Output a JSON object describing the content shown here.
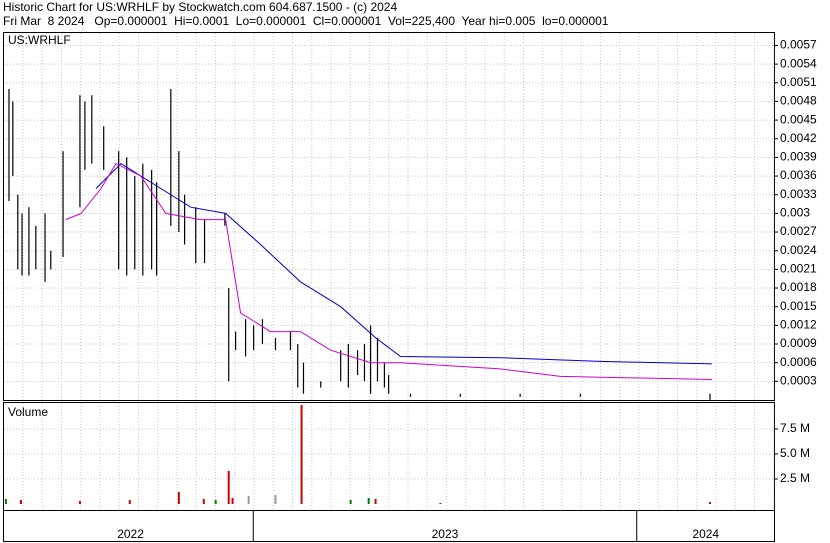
{
  "chart_data": {
    "type": "stock",
    "title": "Historic Chart for US:WRHLF by Stockwatch.com 604.687.1500 - (c) 2024",
    "subtitle": "Fri Mar  8 2024   Op=0.000001  Hi=0.0001  Lo=0.000001  Cl=0.000001  Vol=225,400  Year hi=0.005  lo=0.000001",
    "symbol_label": "US:WRHLF",
    "volume_label": "Volume",
    "xlim": [
      2022.35,
      2024.358
    ],
    "year_starts": [
      2023,
      2024
    ],
    "xticks": [
      {
        "value": 2022.68,
        "label": "2022"
      },
      {
        "value": 2023.5,
        "label": "2023"
      },
      {
        "value": 2024.18,
        "label": "2024"
      }
    ],
    "ylim": [
      0,
      0.0059
    ],
    "yticks": [
      0.0003,
      0.0006,
      0.0009,
      0.0012,
      0.0015,
      0.0018,
      0.0021,
      0.0024,
      0.0027,
      0.003,
      0.0033,
      0.0036,
      0.0039,
      0.0042,
      0.0045,
      0.0048,
      0.0051,
      0.0054,
      0.0057
    ],
    "price_bars": {
      "color": "#000000",
      "x": [
        2022.363,
        2022.373,
        2022.386,
        2022.397,
        2022.415,
        2022.433,
        2022.457,
        2022.472,
        2022.504,
        2022.548,
        2022.561,
        2022.579,
        2022.61,
        2022.649,
        2022.67,
        2022.691,
        2022.712,
        2022.735,
        2022.748,
        2022.785,
        2022.806,
        2022.821,
        2022.85,
        2022.873,
        2022.926,
        2022.936,
        2022.954,
        2022.98,
        2023.001,
        2023.024,
        2023.058,
        2023.097,
        2023.116,
        2023.131,
        2023.176,
        2023.228,
        2023.248,
        2023.272,
        2023.29,
        2023.306,
        2023.324,
        2023.342,
        2023.353,
        2023.41,
        2023.54,
        2023.696,
        2023.853,
        2024.191
      ],
      "high": [
        0.005,
        0.0048,
        0.0033,
        0.003,
        0.0031,
        0.0028,
        0.003,
        0.0024,
        0.004,
        0.0049,
        0.0048,
        0.0049,
        0.0044,
        0.004,
        0.0039,
        0.0036,
        0.0038,
        0.0037,
        0.0035,
        0.005,
        0.004,
        0.0033,
        0.0031,
        0.0029,
        0.003,
        0.0018,
        0.0011,
        0.0013,
        0.0012,
        0.0013,
        0.001,
        0.0011,
        0.0009,
        0.0006,
        0.0003,
        0.0008,
        0.0009,
        0.0008,
        0.0009,
        0.0012,
        0.001,
        0.0006,
        0.0004,
        0.0001,
        0.0001,
        0.0001,
        0.0001,
        0.0001
      ],
      "low": [
        0.0032,
        0.0036,
        0.0021,
        0.002,
        0.002,
        0.0021,
        0.0019,
        0.0021,
        0.0023,
        0.0031,
        0.0037,
        0.0038,
        0.0037,
        0.0021,
        0.002,
        0.0021,
        0.002,
        0.0021,
        0.002,
        0.0028,
        0.0027,
        0.0025,
        0.0022,
        0.0022,
        0.0028,
        0.0003,
        0.0008,
        0.0007,
        0.0008,
        0.0009,
        0.0008,
        0.0008,
        0.0002,
        0.0001,
        0.0002,
        0.0003,
        0.0002,
        0.0004,
        0.0003,
        0.0001,
        0.0003,
        0.0002,
        0.0001,
        5e-05,
        5e-05,
        5e-05,
        5e-05,
        1e-06
      ]
    },
    "series": [
      {
        "color": "#0000cc",
        "x": [
          2022.59,
          2022.655,
          2022.759,
          2022.837,
          2022.928,
          2023.019,
          2023.123,
          2023.228,
          2023.319,
          2023.384,
          2023.644,
          2023.905,
          2024.196
        ],
        "values": [
          0.0034,
          0.0038,
          0.0034,
          0.0031,
          0.003,
          0.0025,
          0.0019,
          0.0015,
          0.001,
          0.0007,
          0.00068,
          0.00062,
          0.00058
        ]
      },
      {
        "color": "#cc00cc",
        "x": [
          2022.511,
          2022.551,
          2022.603,
          2022.642,
          2022.707,
          2022.772,
          2022.863,
          2022.928,
          2022.967,
          2023.045,
          2023.123,
          2023.202,
          2023.306,
          2023.384,
          2023.644,
          2023.801,
          2024.196
        ],
        "values": [
          0.0029,
          0.003,
          0.0034,
          0.0038,
          0.0036,
          0.003,
          0.0029,
          0.0029,
          0.0014,
          0.0011,
          0.0011,
          0.0008,
          0.0006,
          0.0006,
          0.0005,
          0.00038,
          0.00033
        ]
      }
    ],
    "volume": {
      "ylim": [
        0,
        10000000
      ],
      "yticks": [
        {
          "value": 2500000,
          "label": "2.5 M"
        },
        {
          "value": 5000000,
          "label": "5.0 M"
        },
        {
          "value": 7500000,
          "label": "7.5 M"
        }
      ],
      "x": [
        2022.355,
        2022.394,
        2022.548,
        2022.678,
        2022.806,
        2022.871,
        2022.902,
        2022.936,
        2022.946,
        2022.988,
        2023.058,
        2023.126,
        2023.254,
        2023.301,
        2023.319,
        2023.488,
        2024.191
      ],
      "values": [
        500000,
        400000,
        300000,
        400000,
        1200000,
        500000,
        400000,
        3300000,
        600000,
        800000,
        900000,
        9900000,
        400000,
        600000,
        500000,
        100000,
        200000
      ],
      "colors": [
        "#008000",
        "#cc0000",
        "#cc0000",
        "#cc0000",
        "#cc0000",
        "#cc0000",
        "#008000",
        "#cc0000",
        "#cc0000",
        "#999999",
        "#999999",
        "#cc0000",
        "#008000",
        "#008000",
        "#cc0000",
        "#cc0000",
        "#cc0000"
      ]
    }
  }
}
